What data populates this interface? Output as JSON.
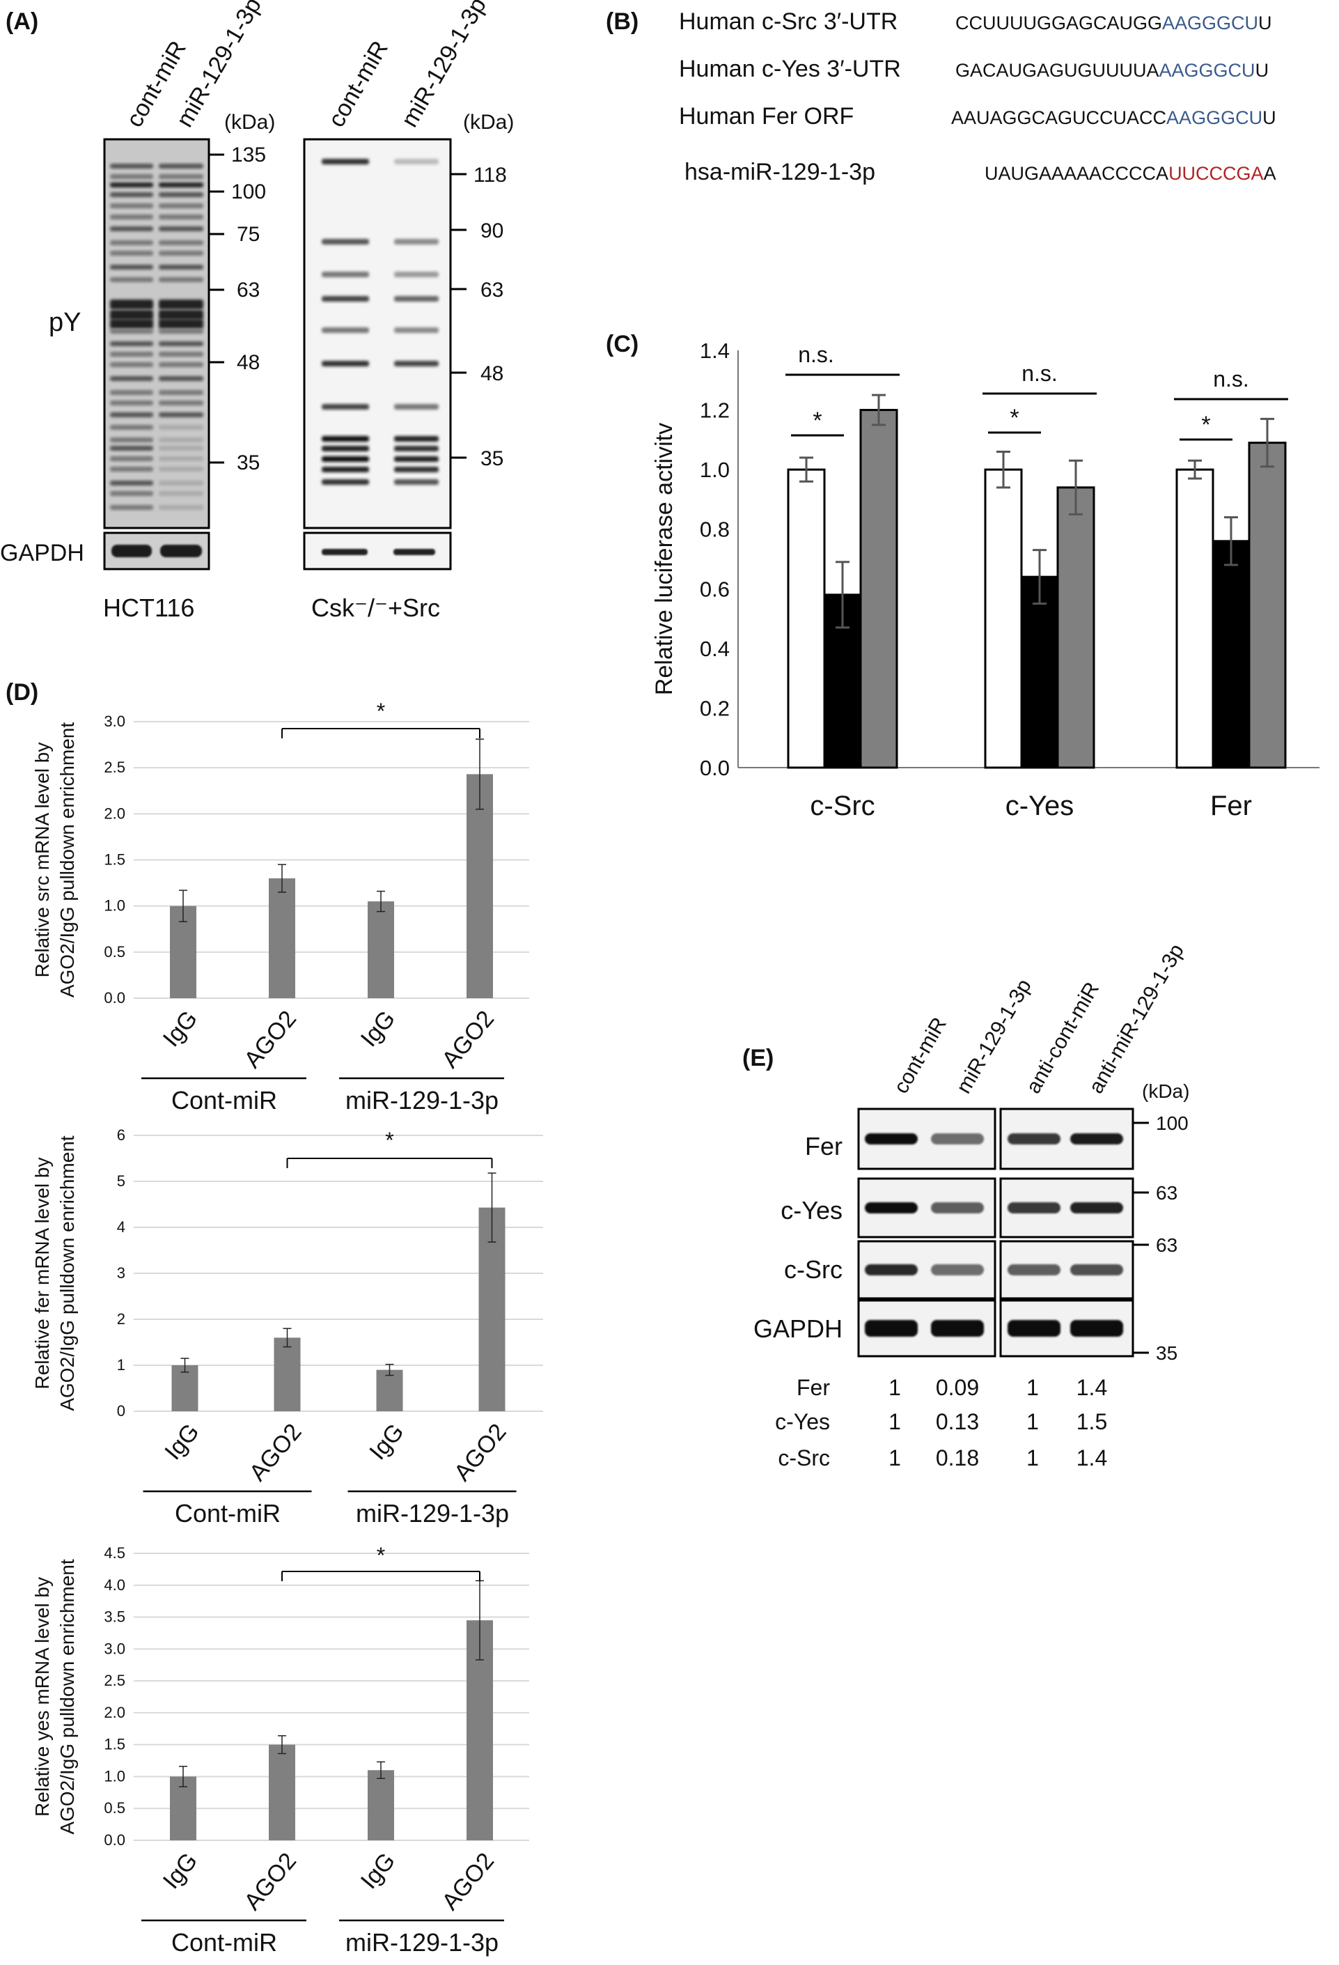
{
  "panelA": {
    "label": "(A)",
    "blot1": {
      "lanes": [
        "cont-miR",
        "miR-129-1-3p"
      ],
      "kda_label": "(kDa)",
      "markers": [
        "135",
        "100",
        "75",
        "63",
        "48",
        "35"
      ],
      "row_label": "pY",
      "loading_label": "GAPDH",
      "cell_line": "HCT116"
    },
    "blot2": {
      "lanes": [
        "cont-miR",
        "miR-129-1-3p"
      ],
      "kda_label": "(kDa)",
      "markers": [
        "118",
        "90",
        "63",
        "48",
        "35"
      ],
      "cell_line": "Csk⁻/⁻+Src"
    }
  },
  "panelB": {
    "label": "(B)",
    "rows": [
      {
        "name": "Human c-Src 3′-UTR",
        "seq_plain": "CCUUUUGGAGCAUGG",
        "seq_color": "AAGGGCU",
        "seq_tail": "U",
        "color": "#3a5a8c"
      },
      {
        "name": "Human c-Yes 3′-UTR",
        "seq_plain": "GACAUGAGUGUUUUA",
        "seq_color": "AAGGGCU",
        "seq_tail": "U",
        "color": "#3a5a8c"
      },
      {
        "name": "Human Fer ORF",
        "seq_plain": "AAUAGGCAGUCCUACC",
        "seq_color": "AAGGGCU",
        "seq_tail": "U",
        "color": "#3a5a8c"
      },
      {
        "name": "hsa-miR-129-1-3p",
        "seq_plain": "UAUGAAAAACCCCA",
        "seq_color": "UUCCCGA",
        "seq_tail": "A",
        "color": "#b22222"
      }
    ]
  },
  "chart_data": [
    {
      "panel": "(C)",
      "type": "bar",
      "ylabel": "Relative luciferase activitv",
      "ylim": [
        0,
        1.4
      ],
      "yticks": [
        "0.0",
        "0.2",
        "0.4",
        "0.6",
        "0.8",
        "1.0",
        "1.2",
        "1.4"
      ],
      "categories": [
        "c-Src",
        "c-Yes",
        "Fer"
      ],
      "series": [
        {
          "values": [
            1.0,
            1.0,
            1.0
          ],
          "errors": [
            0.04,
            0.06,
            0.03
          ],
          "color": "#ffffff"
        },
        {
          "values": [
            0.58,
            0.64,
            0.76
          ],
          "errors": [
            0.11,
            0.09,
            0.08
          ],
          "color": "#000000"
        },
        {
          "values": [
            1.2,
            0.94,
            1.09
          ],
          "errors": [
            0.05,
            0.09,
            0.08
          ],
          "color": "#808080"
        }
      ],
      "annotations": [
        {
          "text": "*",
          "group": "c-Src",
          "between": "white-black"
        },
        {
          "text": "n.s.",
          "group": "c-Src",
          "between": "white-grey"
        },
        {
          "text": "*",
          "group": "c-Yes",
          "between": "white-black"
        },
        {
          "text": "n.s.",
          "group": "c-Yes",
          "between": "white-grey"
        },
        {
          "text": "*",
          "group": "Fer",
          "between": "white-black"
        },
        {
          "text": "n.s.",
          "group": "Fer",
          "between": "white-grey"
        }
      ]
    },
    {
      "panel": "(D)",
      "type": "bar",
      "ylabel": [
        "Relative src mRNA level by",
        "AGO2/IgG pulldown enrichment"
      ],
      "ylim": [
        0,
        3.0
      ],
      "yticks": [
        "0.0",
        "0.5",
        "1.0",
        "1.5",
        "2.0",
        "2.5",
        "3.0"
      ],
      "categories": [
        "IgG",
        "AGO2",
        "IgG",
        "AGO2"
      ],
      "groups": [
        "Cont-miR",
        "miR-129-1-3p"
      ],
      "values": [
        1.0,
        1.3,
        1.05,
        2.43
      ],
      "errors": [
        0.17,
        0.15,
        0.11,
        0.38
      ],
      "significance": "*"
    },
    {
      "panel": "(D)",
      "type": "bar",
      "ylabel": [
        "Relative fer mRNA level by",
        "AGO2/IgG pulldown enrichment"
      ],
      "ylim": [
        0,
        6
      ],
      "yticks": [
        "0",
        "1",
        "2",
        "3",
        "4",
        "5",
        "6"
      ],
      "categories": [
        "IgG",
        "AGO2",
        "IgG",
        "AGO2"
      ],
      "groups": [
        "Cont-miR",
        "miR-129-1-3p"
      ],
      "values": [
        1.0,
        1.6,
        0.9,
        4.43
      ],
      "errors": [
        0.15,
        0.2,
        0.12,
        0.75
      ],
      "significance": "*"
    },
    {
      "panel": "(D)",
      "type": "bar",
      "ylabel": [
        "Relative yes mRNA level by",
        "AGO2/IgG pulldown enrichment"
      ],
      "ylim": [
        0,
        4.5
      ],
      "yticks": [
        "0.0",
        "0.5",
        "1.0",
        "1.5",
        "2.0",
        "2.5",
        "3.0",
        "3.5",
        "4.0",
        "4.5"
      ],
      "categories": [
        "IgG",
        "AGO2",
        "IgG",
        "AGO2"
      ],
      "groups": [
        "Cont-miR",
        "miR-129-1-3p"
      ],
      "values": [
        1.0,
        1.5,
        1.1,
        3.45
      ],
      "errors": [
        0.16,
        0.14,
        0.13,
        0.62
      ],
      "significance": "*"
    }
  ],
  "panelE": {
    "label": "(E)",
    "lanes": [
      "cont-miR",
      "miR-129-1-3p",
      "anti-cont-miR",
      "anti-miR-129-1-3p"
    ],
    "kda_label": "(kDa)",
    "rows": [
      "Fer",
      "c-Yes",
      "c-Src",
      "GAPDH"
    ],
    "markers": [
      "100",
      "63",
      "63",
      "35"
    ],
    "quant": [
      {
        "name": "Fer",
        "values": [
          "1",
          "0.09",
          "1",
          "1.4"
        ]
      },
      {
        "name": "c-Yes",
        "values": [
          "1",
          "0.13",
          "1",
          "1.5"
        ]
      },
      {
        "name": "c-Src",
        "values": [
          "1",
          "0.18",
          "1",
          "1.4"
        ]
      }
    ]
  }
}
